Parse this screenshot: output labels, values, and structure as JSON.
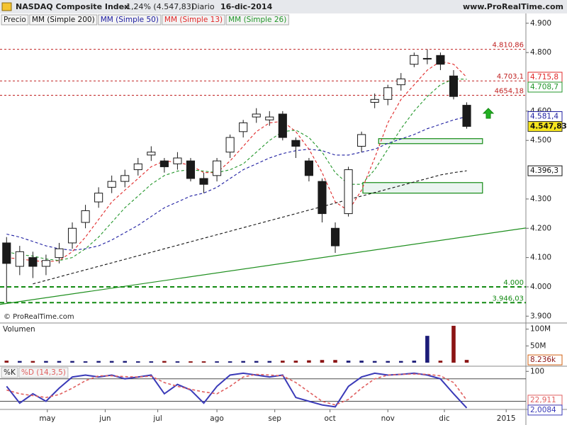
{
  "header": {
    "title": "NASDAQ Composite Index",
    "change": "-1,24% (4.547,83)",
    "period": "Diario",
    "date": "16-dic-2014",
    "site": "www.ProRealTime.com",
    "watermark": "© ProRealTime.com"
  },
  "chart_data": [
    {
      "type": "candlestick",
      "name": "Precio",
      "colors": {
        "up": "#ffffff",
        "down": "#1a1a1a",
        "outline": "#1a1a1a"
      },
      "open": [
        4150,
        4070,
        4100,
        4070,
        4100,
        4150,
        4220,
        4290,
        4340,
        4360,
        4400,
        4450,
        4430,
        4420,
        4430,
        4370,
        4380,
        4460,
        4530,
        4580,
        4570,
        4590,
        4500,
        4430,
        4360,
        4200,
        4250,
        4480,
        4630,
        4640,
        4690,
        4760,
        4780,
        4790,
        4720,
        4620
      ],
      "high": [
        4170,
        4140,
        4120,
        4110,
        4150,
        4220,
        4280,
        4340,
        4380,
        4400,
        4440,
        4480,
        4440,
        4460,
        4440,
        4390,
        4440,
        4520,
        4570,
        4610,
        4600,
        4600,
        4510,
        4440,
        4370,
        4220,
        4410,
        4530,
        4660,
        4690,
        4730,
        4800,
        4810.86,
        4800,
        4740,
        4630
      ],
      "low": [
        3946.03,
        4040,
        4030,
        4040,
        4080,
        4130,
        4200,
        4270,
        4320,
        4340,
        4380,
        4430,
        4390,
        4400,
        4360,
        4320,
        4360,
        4440,
        4510,
        4560,
        4550,
        4500,
        4440,
        4360,
        4220,
        4116,
        4240,
        4460,
        4610,
        4620,
        4670,
        4750,
        4760,
        4740,
        4640,
        4540
      ],
      "close": [
        4080,
        4120,
        4070,
        4090,
        4130,
        4200,
        4260,
        4320,
        4360,
        4380,
        4420,
        4460,
        4410,
        4440,
        4370,
        4350,
        4430,
        4510,
        4560,
        4590,
        4580,
        4510,
        4480,
        4380,
        4250,
        4140,
        4400,
        4520,
        4640,
        4680,
        4710,
        4790,
        4780,
        4760,
        4650,
        4547.83
      ],
      "close_label": "4.547,83",
      "series": [
        {
          "name": "MM (Simple 200)",
          "color": "#111111",
          "dash": true,
          "last_value_label": "4.396,3",
          "values": [
            null,
            null,
            4010,
            4022,
            4034,
            4046,
            4058,
            4070,
            4082,
            4094,
            4106,
            4118,
            4130,
            4142,
            4154,
            4166,
            4178,
            4190,
            4202,
            4214,
            4226,
            4238,
            4250,
            4262,
            4274,
            4286,
            4298,
            4310,
            4322,
            4334,
            4346,
            4358,
            4370,
            4382,
            4390,
            4396.3
          ]
        },
        {
          "name": "MM (Simple 50)",
          "color": "#1c1ca0",
          "dash": true,
          "last_value_label": "4.581,4",
          "values": [
            4180,
            4170,
            4155,
            4140,
            4130,
            4125,
            4130,
            4140,
            4160,
            4185,
            4210,
            4240,
            4270,
            4290,
            4310,
            4320,
            4340,
            4370,
            4400,
            4420,
            4440,
            4455,
            4465,
            4470,
            4465,
            4450,
            4450,
            4460,
            4470,
            4490,
            4505,
            4520,
            4540,
            4555,
            4570,
            4581.4
          ]
        },
        {
          "name": "MM (Simple 13)",
          "color": "#e02828",
          "dash": true,
          "last_value_label": "4.715,8",
          "values": [
            4100,
            4095,
            4090,
            4085,
            4090,
            4120,
            4170,
            4230,
            4290,
            4330,
            4370,
            4410,
            4430,
            4425,
            4415,
            4390,
            4390,
            4430,
            4480,
            4530,
            4560,
            4565,
            4530,
            4470,
            4390,
            4290,
            4260,
            4330,
            4440,
            4560,
            4640,
            4690,
            4740,
            4770,
            4760,
            4715.8
          ]
        },
        {
          "name": "MM (Simple 26)",
          "color": "#22962a",
          "dash": true,
          "last_value_label": "4.708,7",
          "values": [
            4120,
            4110,
            4105,
            4095,
            4090,
            4100,
            4130,
            4170,
            4220,
            4270,
            4310,
            4350,
            4380,
            4395,
            4400,
            4395,
            4390,
            4400,
            4420,
            4460,
            4500,
            4530,
            4535,
            4510,
            4460,
            4390,
            4350,
            4350,
            4400,
            4470,
            4540,
            4600,
            4650,
            4690,
            4710,
            4708.7
          ]
        }
      ],
      "levels": [
        {
          "value": 4810.86,
          "label": "4.810,86",
          "color": "#c02020"
        },
        {
          "value": 4703.1,
          "label": "4.703,1",
          "color": "#c02020"
        },
        {
          "value": 4654.18,
          "label": "4654,18",
          "color": "#c02020"
        },
        {
          "value": 4000,
          "label": "4.000",
          "color": "#138a13"
        },
        {
          "value": 3946.03,
          "label": "3.946,03",
          "color": "#138a13"
        }
      ],
      "trendline": {
        "x": [
          -0.5,
          39.5
        ],
        "y": [
          3940,
          4201
        ],
        "color": "#1f8f1f"
      },
      "zones": [
        {
          "x": [
            28.3,
            36.2
          ],
          "y": [
            4489,
            4506
          ]
        },
        {
          "x": [
            27.1,
            36.2
          ],
          "y": [
            4320,
            4356
          ]
        }
      ],
      "xlim": [
        -0.5,
        39.5
      ],
      "xticks": [
        {
          "value": 3.1,
          "label": "may"
        },
        {
          "value": 7.5,
          "label": "jun"
        },
        {
          "value": 11.5,
          "label": "jul"
        },
        {
          "value": 16,
          "label": "ago"
        },
        {
          "value": 20.4,
          "label": "sep"
        },
        {
          "value": 24.6,
          "label": "oct"
        },
        {
          "value": 29,
          "label": "nov"
        },
        {
          "value": 33.3,
          "label": "dic"
        },
        {
          "value": 38,
          "label": "2015"
        }
      ],
      "ylim": [
        3879,
        4931
      ],
      "yticks": [
        {
          "value": 4900,
          "label": "4.900"
        },
        {
          "value": 4800,
          "label": "4.800"
        },
        {
          "value": 4600,
          "label": "4.600"
        },
        {
          "value": 4500,
          "label": "4.500"
        },
        {
          "value": 4300,
          "label": "4.300"
        },
        {
          "value": 4200,
          "label": "4.200"
        },
        {
          "value": 4100,
          "label": "4.100"
        },
        {
          "value": 4000,
          "label": "4.000"
        },
        {
          "value": 3900,
          "label": "3.900"
        }
      ]
    },
    {
      "type": "bar",
      "title": "Volumen",
      "colors": {
        "up": "#1c1c78",
        "down": "#8b1414"
      },
      "values": [
        6000000,
        5000000,
        5000000,
        5000000,
        5000000,
        5000000,
        4000000,
        5000000,
        5000000,
        5000000,
        4000000,
        4000000,
        5000000,
        4000000,
        4000000,
        4000000,
        4000000,
        4000000,
        5000000,
        5000000,
        5000000,
        6000000,
        6000000,
        7000000,
        8000000,
        8000000,
        6000000,
        6000000,
        5000000,
        5000000,
        5000000,
        6000000,
        80000000,
        6000000,
        110000000,
        8236000
      ],
      "last_value_label": "8.236k",
      "ylim": [
        0,
        112000000
      ],
      "yticks": [
        {
          "value": 100000000,
          "label": "100M"
        },
        {
          "value": 50000000,
          "label": "50M"
        }
      ]
    },
    {
      "type": "line",
      "series": [
        {
          "name": "%K",
          "color": "#3a3ab8",
          "dash": false,
          "last_value_label": "2,0084",
          "values": [
            60,
            15,
            40,
            20,
            55,
            85,
            90,
            85,
            90,
            80,
            85,
            90,
            40,
            65,
            50,
            15,
            60,
            90,
            95,
            90,
            85,
            90,
            30,
            20,
            10,
            5,
            60,
            85,
            95,
            90,
            92,
            95,
            90,
            80,
            40,
            2.0084
          ]
        },
        {
          "name": "%D (14,3,5)",
          "color": "#e06060",
          "dash": true,
          "last_value_label": "22,911",
          "values": [
            50,
            40,
            35,
            30,
            38,
            55,
            75,
            88,
            88,
            86,
            85,
            87,
            70,
            60,
            52,
            45,
            40,
            60,
            85,
            92,
            90,
            88,
            70,
            45,
            20,
            10,
            25,
            55,
            80,
            90,
            92,
            93,
            92,
            88,
            70,
            22.911
          ]
        }
      ],
      "hlines": [
        20,
        80
      ],
      "ylim": [
        0,
        110
      ],
      "yticks": [
        100
      ]
    }
  ]
}
